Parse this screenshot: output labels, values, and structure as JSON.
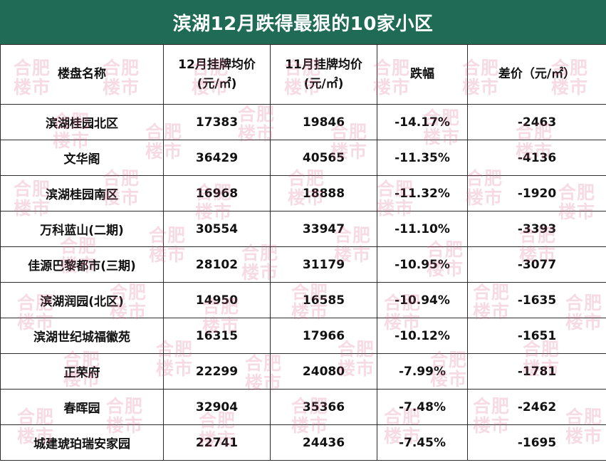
{
  "title": "滨湖12月跌得最狠的10家小区",
  "headers": {
    "name": "楼盘名称",
    "dec_price_line1": "12月挂牌均价",
    "dec_price_line2": "(元/㎡)",
    "nov_price_line1": "11月挂牌均价",
    "nov_price_line2": "(元/㎡)",
    "change": "跌幅",
    "diff": "差价（元/㎡）"
  },
  "rows": [
    {
      "name": "滨湖桂园北区",
      "dec": "17383",
      "nov": "19846",
      "change": "-14.17%",
      "diff": "-2463"
    },
    {
      "name": "文华阁",
      "dec": "36429",
      "nov": "40565",
      "change": "-11.35%",
      "diff": "-4136"
    },
    {
      "name": "滨湖桂园南区",
      "dec": "16968",
      "nov": "18888",
      "change": "-11.32%",
      "diff": "-1920"
    },
    {
      "name": "万科蓝山(二期)",
      "dec": "30554",
      "nov": "33947",
      "change": "-11.10%",
      "diff": "-3393"
    },
    {
      "name": "佳源巴黎都市(三期)",
      "dec": "28102",
      "nov": "31179",
      "change": "-10.95%",
      "diff": "-3077"
    },
    {
      "name": "滨湖润园(北区)",
      "dec": "14950",
      "nov": "16585",
      "change": "-10.94%",
      "diff": "-1635"
    },
    {
      "name": "滨湖世纪城福徽苑",
      "dec": "16315",
      "nov": "17966",
      "change": "-10.12%",
      "diff": "-1651"
    },
    {
      "name": "正荣府",
      "dec": "22299",
      "nov": "24080",
      "change": "-7.99%",
      "diff": "-1781"
    },
    {
      "name": "春晖园",
      "dec": "32904",
      "nov": "35366",
      "change": "-7.48%",
      "diff": "-2462"
    },
    {
      "name": "城建琥珀瑞安家园",
      "dec": "22741",
      "nov": "24436",
      "change": "-7.45%",
      "diff": "-1695"
    }
  ],
  "watermark": {
    "line1": "合肥",
    "line2": "楼市"
  },
  "colors": {
    "title_bg": "#206b55",
    "title_text": "#ffffff",
    "watermark": "#dc5a82"
  }
}
